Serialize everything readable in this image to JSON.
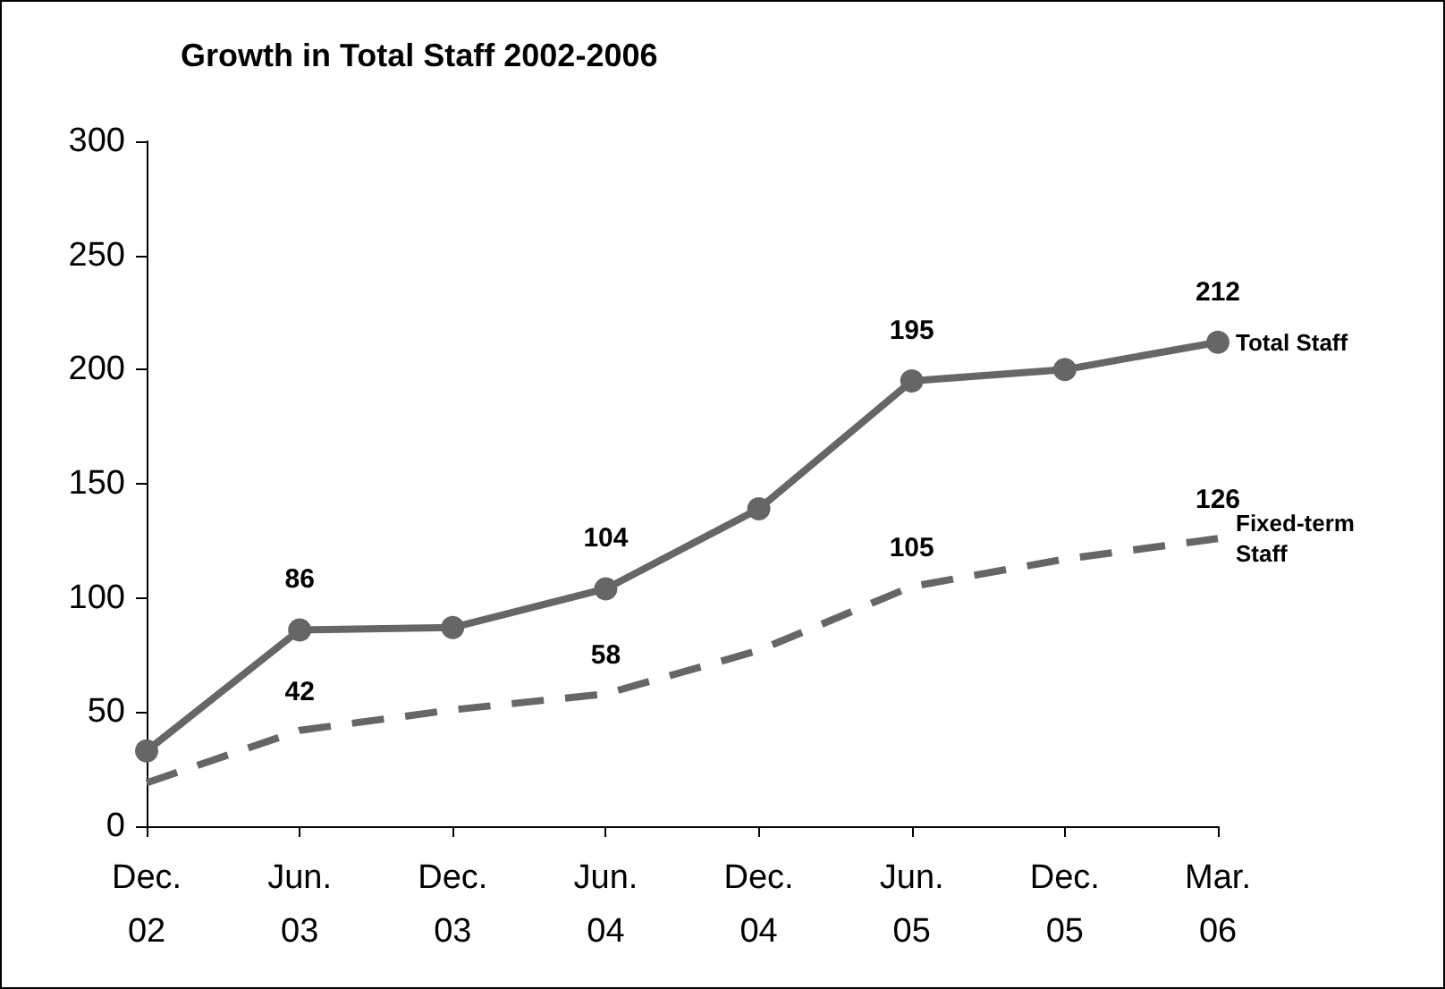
{
  "chart_data": {
    "type": "line",
    "title": "Growth in Total Staff 2002-2006",
    "categories": [
      "Dec. 02",
      "Jun. 03",
      "Dec. 03",
      "Jun. 04",
      "Dec. 04",
      "Jun. 05",
      "Dec. 05",
      "Mar. 06"
    ],
    "series": [
      {
        "name": "Total Staff",
        "color": "#666666",
        "values": [
          33,
          86,
          87,
          104,
          139,
          195,
          200,
          212
        ],
        "value_labels": [
          null,
          "86",
          null,
          "104",
          null,
          "195",
          null,
          "212"
        ],
        "marker": "circle",
        "line_style": "solid"
      },
      {
        "name": "Fixed-term Staff",
        "color": "#666666",
        "values": [
          19,
          42,
          51,
          58,
          77,
          105,
          117,
          126
        ],
        "value_labels": [
          null,
          "42",
          null,
          "58",
          null,
          "105",
          null,
          "126"
        ],
        "marker": "none",
        "line_style": "dashed"
      }
    ],
    "ylim": [
      0,
      300
    ],
    "yticks": [
      0,
      50,
      100,
      150,
      200,
      250,
      300
    ],
    "grid": false,
    "legend": false
  }
}
